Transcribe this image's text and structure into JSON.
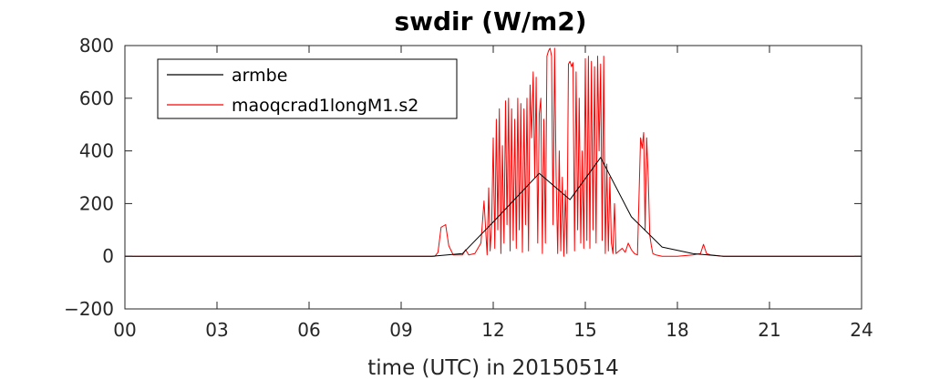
{
  "chart_data": {
    "type": "line",
    "title": "swdir  (W/m2)",
    "xlabel": "time (UTC) in 20150514",
    "ylabel": "",
    "xlim": [
      0,
      24
    ],
    "ylim": [
      -200,
      800
    ],
    "x_ticks": [
      0,
      3,
      6,
      9,
      12,
      15,
      18,
      21,
      24
    ],
    "x_tick_labels": [
      "00",
      "03",
      "06",
      "09",
      "12",
      "15",
      "18",
      "21",
      "24"
    ],
    "y_ticks": [
      -200,
      0,
      200,
      400,
      600,
      800
    ],
    "y_tick_labels": [
      "−200",
      "0",
      "200",
      "400",
      "600",
      "800"
    ],
    "legend_position": "top-left",
    "grid": false,
    "series": [
      {
        "name": "armbe",
        "color": "#000000",
        "x": [
          0,
          10.0,
          11.0,
          12.0,
          13.5,
          14.5,
          15.5,
          16.5,
          17.5,
          18.5,
          19.5,
          24
        ],
        "y": [
          0,
          0,
          10,
          130,
          315,
          215,
          375,
          150,
          35,
          10,
          0,
          0
        ]
      },
      {
        "name": "maoqcrad1longM1.s2",
        "color": "#ff0000",
        "x": [
          0,
          10.1,
          10.2,
          10.3,
          10.45,
          10.55,
          10.7,
          11.0,
          11.1,
          11.2,
          11.4,
          11.6,
          11.7,
          11.8,
          11.85,
          11.9,
          11.95,
          12.0,
          12.05,
          12.1,
          12.15,
          12.2,
          12.25,
          12.3,
          12.35,
          12.4,
          12.45,
          12.5,
          12.55,
          12.6,
          12.65,
          12.7,
          12.75,
          12.8,
          12.85,
          12.9,
          12.95,
          13.0,
          13.05,
          13.1,
          13.15,
          13.2,
          13.25,
          13.3,
          13.35,
          13.4,
          13.45,
          13.5,
          13.55,
          13.6,
          13.65,
          13.7,
          13.75,
          13.8,
          13.85,
          13.9,
          13.95,
          14.0,
          14.05,
          14.1,
          14.15,
          14.2,
          14.25,
          14.3,
          14.35,
          14.4,
          14.45,
          14.5,
          14.55,
          14.6,
          14.65,
          14.7,
          14.75,
          14.8,
          14.85,
          14.9,
          14.95,
          15.0,
          15.05,
          15.1,
          15.15,
          15.2,
          15.25,
          15.3,
          15.35,
          15.4,
          15.45,
          15.5,
          15.55,
          15.6,
          15.65,
          15.7,
          15.75,
          15.8,
          15.85,
          15.9,
          15.95,
          16.0,
          16.1,
          16.2,
          16.3,
          16.4,
          16.5,
          16.6,
          16.7,
          16.8,
          16.85,
          16.9,
          16.95,
          17.0,
          17.05,
          17.1,
          17.15,
          17.2,
          17.3,
          17.5,
          18.0,
          18.5,
          18.75,
          18.85,
          18.95,
          19.1,
          19.5,
          20.0,
          24
        ],
        "y": [
          0,
          0,
          15,
          110,
          120,
          40,
          5,
          5,
          25,
          5,
          10,
          50,
          210,
          5,
          260,
          20,
          120,
          450,
          30,
          520,
          100,
          560,
          10,
          420,
          50,
          590,
          120,
          600,
          20,
          560,
          60,
          520,
          30,
          600,
          100,
          580,
          15,
          560,
          120,
          600,
          20,
          650,
          450,
          700,
          300,
          680,
          50,
          540,
          600,
          10,
          520,
          50,
          760,
          780,
          790,
          760,
          120,
          790,
          300,
          10,
          400,
          20,
          300,
          0,
          250,
          10,
          730,
          740,
          720,
          735,
          20,
          700,
          100,
          600,
          50,
          400,
          30,
          750,
          60,
          760,
          30,
          740,
          100,
          720,
          50,
          760,
          400,
          730,
          60,
          760,
          10,
          350,
          20,
          300,
          50,
          10,
          200,
          10,
          20,
          30,
          15,
          50,
          25,
          10,
          5,
          450,
          410,
          470,
          100,
          450,
          300,
          80,
          40,
          10,
          5,
          0,
          0,
          5,
          10,
          45,
          10,
          5,
          0,
          0,
          0
        ]
      }
    ]
  }
}
